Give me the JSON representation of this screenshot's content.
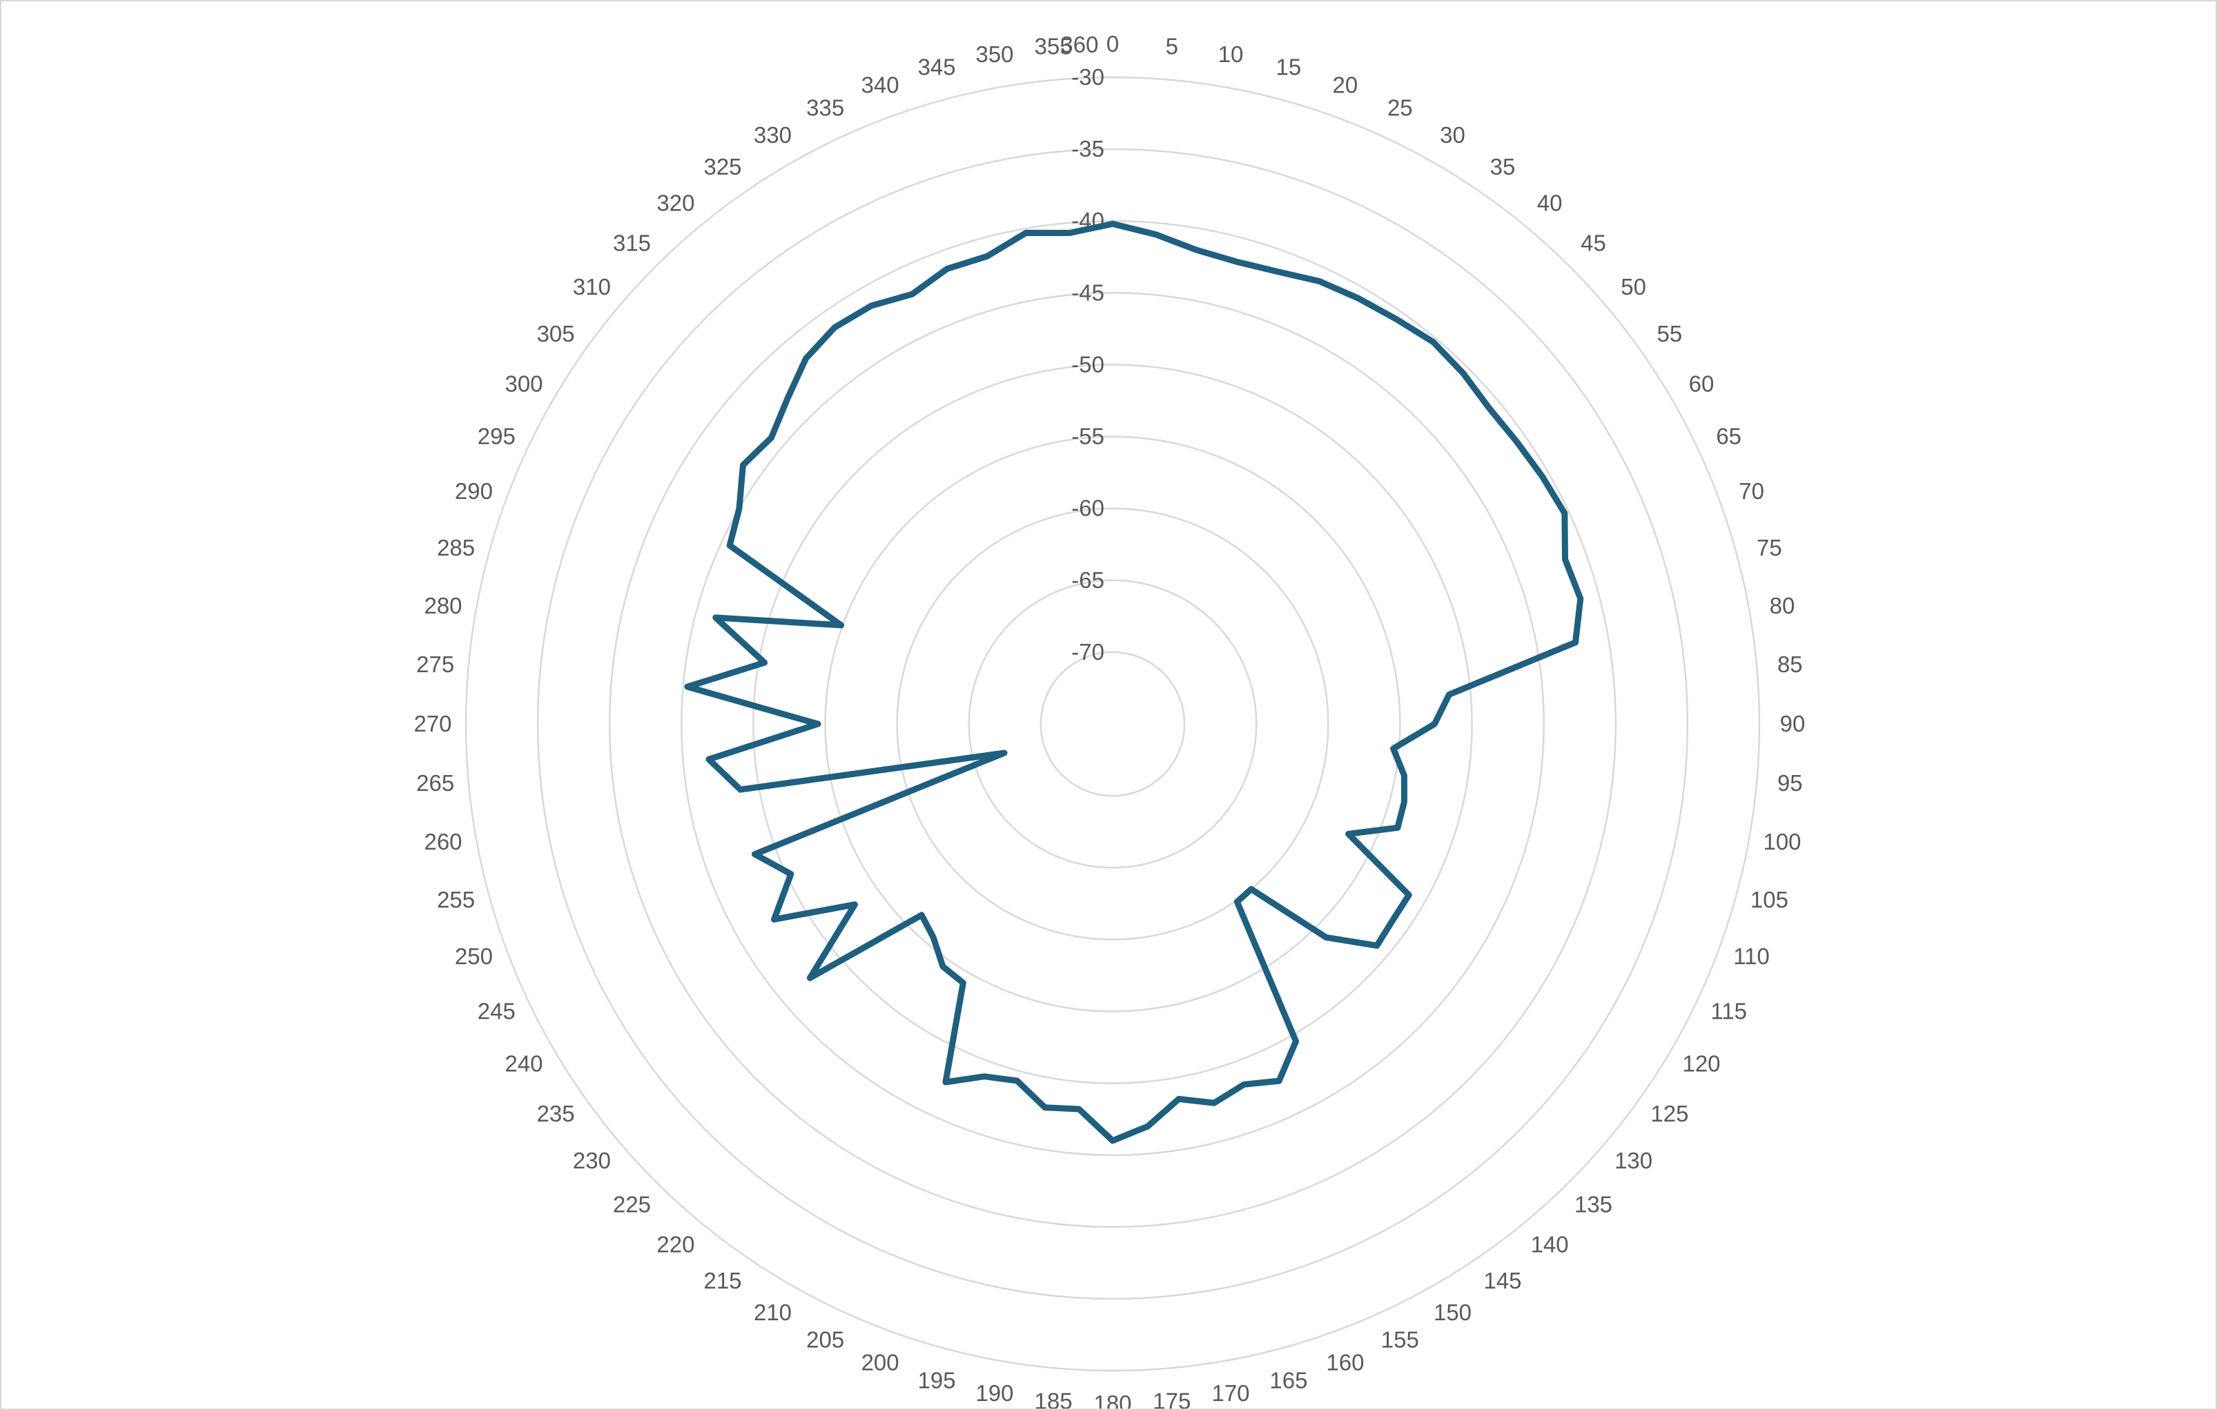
{
  "chart_data": {
    "type": "radar",
    "title": "",
    "angle_unit": "degrees",
    "angles": [
      0,
      5,
      10,
      15,
      20,
      25,
      30,
      35,
      40,
      45,
      50,
      55,
      60,
      65,
      70,
      75,
      80,
      85,
      90,
      95,
      100,
      105,
      110,
      115,
      120,
      125,
      130,
      135,
      140,
      145,
      150,
      155,
      160,
      165,
      170,
      175,
      180,
      185,
      190,
      195,
      200,
      205,
      210,
      215,
      220,
      225,
      230,
      235,
      240,
      245,
      250,
      255,
      260,
      265,
      270,
      275,
      280,
      285,
      290,
      295,
      300,
      305,
      310,
      315,
      320,
      325,
      330,
      335,
      340,
      345,
      350,
      355,
      360
    ],
    "angle_labels": [
      "0",
      "5",
      "10",
      "15",
      "20",
      "25",
      "30",
      "35",
      "40",
      "45",
      "50",
      "55",
      "60",
      "65",
      "70",
      "75",
      "80",
      "85",
      "90",
      "95",
      "100",
      "105",
      "110",
      "115",
      "120",
      "125",
      "130",
      "135",
      "140",
      "145",
      "150",
      "155",
      "160",
      "165",
      "170",
      "175",
      "180",
      "185",
      "190",
      "195",
      "200",
      "205",
      "210",
      "215",
      "220",
      "225",
      "230",
      "235",
      "240",
      "245",
      "250",
      "255",
      "260",
      "265",
      "270",
      "275",
      "280",
      "285",
      "290",
      "295",
      "300",
      "305",
      "310",
      "315",
      "320",
      "325",
      "330",
      "335",
      "340",
      "345",
      "350",
      "355",
      "360"
    ],
    "radial_axis": {
      "min": -70,
      "max": -30,
      "ticks": [
        -70,
        -65,
        -60,
        -55,
        -50,
        -45,
        -40,
        -35,
        -30
      ],
      "tick_labels": [
        "-70",
        "-65",
        "-60",
        "-55",
        "-50",
        "-45",
        "-40",
        "-35",
        "-30"
      ],
      "inner_offset": 5
    },
    "grid": true,
    "legend": "none",
    "series": [
      {
        "color": "#1f5f7f",
        "values": [
          -40.2,
          -40.8,
          -41.5,
          -41.7,
          -41.5,
          -41.0,
          -40.8,
          -40.6,
          -40.3,
          -40.5,
          -40.8,
          -40.7,
          -40.5,
          -40.3,
          -41.5,
          -41.3,
          -42.3,
          -51.5,
          -52.6,
          -55.4,
          -54.4,
          -54.0,
          -53.9,
          -56.9,
          -51.2,
          -51.2,
          -51.0,
          -54.0,
          -60.0,
          -59.9,
          -49.5,
          -47.6,
          -48.3,
          -47.7,
          -48.5,
          -46.9,
          -46.0,
          -48.1,
          -47.9,
          -49.3,
          -48.9,
          -47.5,
          -54.2,
          -54.4,
          -55.6,
          -56.2,
          -47.5,
          -53.1,
          -47.8,
          -50.3,
          -48.5,
          -67.2,
          -48.7,
          -46.8,
          -54.5,
          -45.3,
          -50.4,
          -46.4,
          -54.9,
          -45.6,
          -45.0,
          -43.6,
          -44.0,
          -43.0,
          -41.8,
          -41.3,
          -41.4,
          -42.0,
          -41.3,
          -41.3,
          -40.3,
          -40.7,
          -40.2
        ]
      }
    ]
  }
}
